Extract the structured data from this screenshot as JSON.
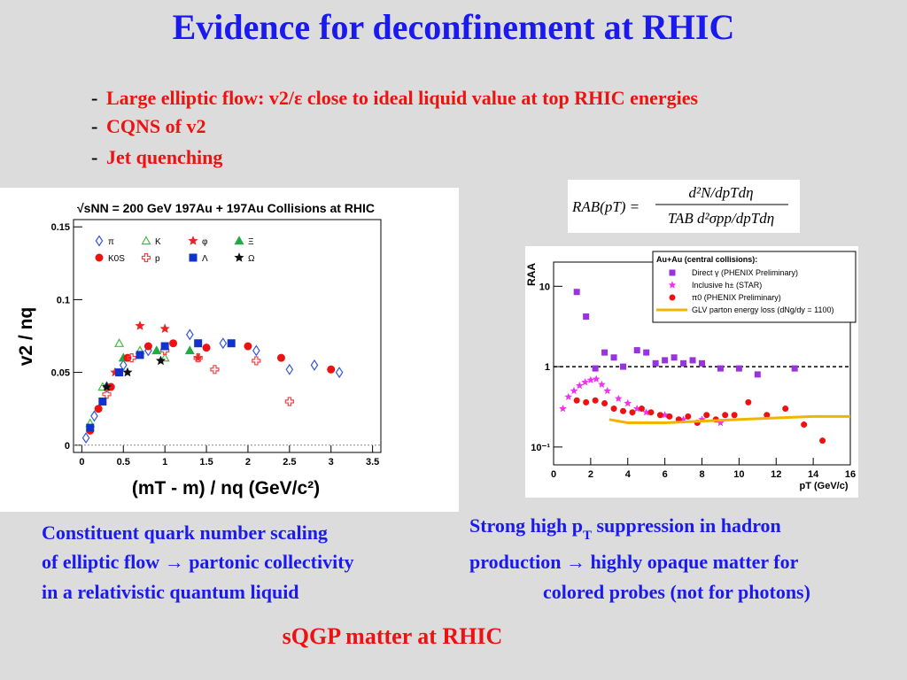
{
  "title": "Evidence for deconfinement at RHIC",
  "bullets": [
    "Large elliptic flow: v2/ε close to ideal liquid value at top RHIC energies",
    "CQNS of v2",
    "Jet quenching"
  ],
  "formula": {
    "lhs": "RAB(pT) =",
    "numerator": "d²N/dpTdη",
    "denominator": "TAB d²σpp/dpTdη"
  },
  "left_caption": [
    "Constituent quark number scaling",
    "of elliptic flow → partonic collectivity",
    "in a relativistic quantum liquid"
  ],
  "right_caption": [
    [
      "Strong high p",
      "T",
      " suppression in hadron"
    ],
    [
      "production → highly opaque matter for"
    ],
    [
      "colored probes (not for photons)"
    ]
  ],
  "footer": "sQGP matter at RHIC",
  "chart_data": [
    {
      "type": "scatter",
      "title": "√sNN = 200 GeV 197Au + 197Au Collisions at RHIC",
      "xlabel": "(mT - m) / nq (GeV/c²)",
      "ylabel": "v2 / nq",
      "xlim": [
        -0.1,
        3.6
      ],
      "ylim": [
        -0.005,
        0.155
      ],
      "xticks": [
        0,
        0.5,
        1,
        1.5,
        2,
        2.5,
        3,
        3.5
      ],
      "yticks": [
        0,
        0.05,
        0.1,
        0.15
      ],
      "reference_line": 0,
      "series": [
        {
          "name": "π",
          "color": "#3355dd",
          "marker": "diamond-open",
          "x": [
            0.05,
            0.15,
            0.3,
            0.5,
            0.8,
            1.3,
            1.7,
            2.1,
            2.5,
            2.8,
            3.1
          ],
          "y": [
            0.005,
            0.02,
            0.04,
            0.055,
            0.065,
            0.076,
            0.07,
            0.065,
            0.052,
            0.055,
            0.05
          ]
        },
        {
          "name": "K",
          "color": "#44bb44",
          "marker": "triangle-open",
          "x": [
            0.1,
            0.25,
            0.45,
            0.7,
            1.0
          ],
          "y": [
            0.015,
            0.04,
            0.07,
            0.065,
            0.06
          ]
        },
        {
          "name": "φ",
          "color": "#ee2222",
          "marker": "star",
          "x": [
            0.4,
            0.7,
            1.0,
            1.4
          ],
          "y": [
            0.05,
            0.082,
            0.08,
            0.06
          ]
        },
        {
          "name": "Ξ",
          "color": "#22aa44",
          "marker": "triangle",
          "x": [
            0.5,
            0.9,
            1.3
          ],
          "y": [
            0.06,
            0.065,
            0.065
          ]
        },
        {
          "name": "K0S",
          "color": "#ee1111",
          "marker": "circle",
          "x": [
            0.1,
            0.2,
            0.35,
            0.55,
            0.8,
            1.1,
            1.5,
            2.0,
            2.4,
            3.0
          ],
          "y": [
            0.01,
            0.025,
            0.04,
            0.06,
            0.068,
            0.07,
            0.067,
            0.068,
            0.06,
            0.052
          ]
        },
        {
          "name": "p",
          "color": "#ee4444",
          "marker": "cross-open",
          "x": [
            0.3,
            0.6,
            1.0,
            1.4,
            1.6,
            2.1,
            2.5
          ],
          "y": [
            0.035,
            0.06,
            0.065,
            0.06,
            0.052,
            0.058,
            0.03
          ]
        },
        {
          "name": "Λ",
          "color": "#1133cc",
          "marker": "square",
          "x": [
            0.1,
            0.25,
            0.45,
            0.7,
            1.0,
            1.4,
            1.8
          ],
          "y": [
            0.012,
            0.03,
            0.05,
            0.062,
            0.068,
            0.07,
            0.07
          ]
        },
        {
          "name": "Ω",
          "color": "#111111",
          "marker": "star",
          "x": [
            0.3,
            0.55,
            0.95
          ],
          "y": [
            0.04,
            0.05,
            0.058
          ]
        }
      ]
    },
    {
      "type": "scatter",
      "log_y": true,
      "legend_title": "Au+Au (central collisions):",
      "xlabel": "pT (GeV/c)",
      "ylabel": "RAA",
      "xlim": [
        0,
        16
      ],
      "ylim": [
        0.06,
        20
      ],
      "xticks": [
        0,
        2,
        4,
        6,
        8,
        10,
        12,
        14,
        16
      ],
      "yticks": [
        {
          "value": 0.1,
          "label": "10⁻¹"
        },
        1,
        10
      ],
      "reference_line": 1,
      "series": [
        {
          "name": "Direct γ (PHENIX Preliminary)",
          "color": "#9933dd",
          "marker": "square",
          "x": [
            1.25,
            1.75,
            2.25,
            2.75,
            3.25,
            3.75,
            4.5,
            5,
            5.5,
            6,
            6.5,
            7,
            7.5,
            8,
            9,
            10,
            11,
            13
          ],
          "y": [
            8.5,
            4.2,
            0.95,
            1.5,
            1.3,
            1.0,
            1.6,
            1.5,
            1.1,
            1.2,
            1.3,
            1.1,
            1.2,
            1.1,
            0.95,
            0.95,
            0.8,
            0.95
          ]
        },
        {
          "name": "Inclusive h± (STAR)",
          "color": "#ee33ee",
          "marker": "star",
          "x": [
            0.5,
            0.8,
            1.1,
            1.4,
            1.7,
            2,
            2.3,
            2.6,
            2.9,
            3.5,
            4,
            4.5,
            5,
            6,
            7,
            8,
            9
          ],
          "y": [
            0.3,
            0.42,
            0.5,
            0.58,
            0.64,
            0.68,
            0.7,
            0.6,
            0.5,
            0.4,
            0.35,
            0.3,
            0.27,
            0.25,
            0.22,
            0.22,
            0.2
          ]
        },
        {
          "name": "π0 (PHENIX Preliminary)",
          "color": "#ee1111",
          "marker": "circle",
          "x": [
            1.25,
            1.75,
            2.25,
            2.75,
            3.25,
            3.75,
            4.25,
            4.75,
            5.25,
            5.75,
            6.25,
            6.75,
            7.25,
            7.75,
            8.25,
            8.75,
            9.25,
            9.75,
            10.5,
            11.5,
            12.5,
            13.5,
            14.5
          ],
          "y": [
            0.38,
            0.36,
            0.38,
            0.35,
            0.3,
            0.28,
            0.27,
            0.3,
            0.27,
            0.25,
            0.24,
            0.22,
            0.24,
            0.2,
            0.25,
            0.22,
            0.25,
            0.25,
            0.36,
            0.25,
            0.3,
            0.19,
            0.12
          ]
        },
        {
          "name": "GLV parton energy loss (dNg/dy = 1100)",
          "color": "#f0b400",
          "marker": "line",
          "x": [
            3,
            4,
            6,
            8,
            10,
            12,
            14,
            16
          ],
          "y": [
            0.22,
            0.2,
            0.2,
            0.21,
            0.22,
            0.23,
            0.24,
            0.24
          ]
        }
      ]
    }
  ]
}
